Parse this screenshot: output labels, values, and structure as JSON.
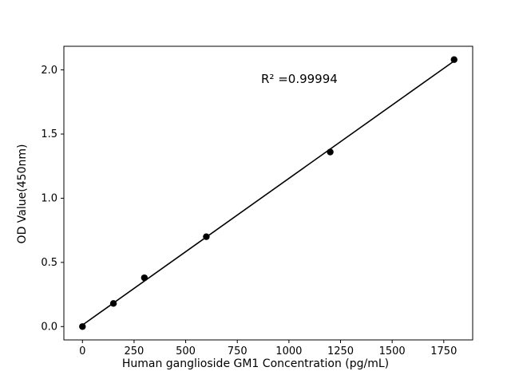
{
  "chart_data": {
    "type": "scatter",
    "title": "",
    "xlabel": "Human ganglioside GM1 Concentration (pg/mL)",
    "ylabel": "OD Value(450nm)",
    "annotation": "R² =0.99994",
    "x": [
      0,
      150,
      300,
      600,
      1200,
      1800
    ],
    "y": [
      0.0,
      0.18,
      0.38,
      0.7,
      1.36,
      2.08
    ],
    "trendline": true,
    "xticks": [
      0,
      250,
      500,
      750,
      1000,
      1250,
      1500,
      1750
    ],
    "xtick_labels": [
      "0",
      "250",
      "500",
      "750",
      "1000",
      "1250",
      "1500",
      "1750"
    ],
    "yticks": [
      0.0,
      0.5,
      1.0,
      1.5,
      2.0
    ],
    "ytick_labels": [
      "0.0",
      "0.5",
      "1.0",
      "1.5",
      "2.0"
    ],
    "xlim": [
      -90,
      1890
    ],
    "ylim": [
      -0.104,
      2.184
    ],
    "grid": false,
    "legend": "none",
    "marker_color": "#000000",
    "line_color": "#000000",
    "background_color": "#ffffff"
  }
}
